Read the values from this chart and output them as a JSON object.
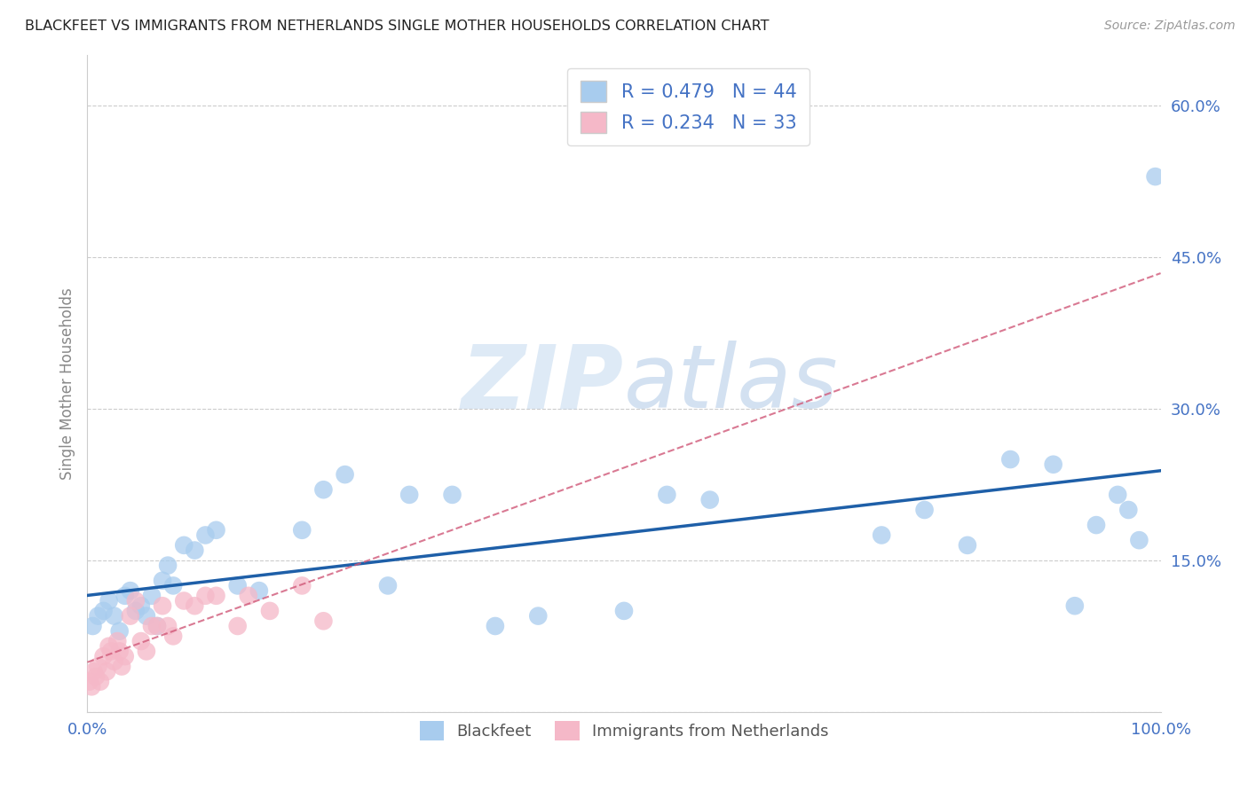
{
  "title": "BLACKFEET VS IMMIGRANTS FROM NETHERLANDS SINGLE MOTHER HOUSEHOLDS CORRELATION CHART",
  "source": "Source: ZipAtlas.com",
  "ylabel": "Single Mother Households",
  "xlim": [
    0,
    1.0
  ],
  "ylim": [
    0,
    0.65
  ],
  "yticks": [
    0.0,
    0.15,
    0.3,
    0.45,
    0.6
  ],
  "ytick_labels": [
    "",
    "15.0%",
    "30.0%",
    "45.0%",
    "60.0%"
  ],
  "xticks": [
    0.0,
    0.2,
    0.4,
    0.6,
    0.8,
    1.0
  ],
  "xtick_labels": [
    "0.0%",
    "",
    "",
    "",
    "",
    "100.0%"
  ],
  "blackfeet_x": [
    0.005,
    0.01,
    0.015,
    0.02,
    0.025,
    0.03,
    0.035,
    0.04,
    0.045,
    0.05,
    0.055,
    0.06,
    0.065,
    0.07,
    0.075,
    0.08,
    0.09,
    0.1,
    0.11,
    0.12,
    0.14,
    0.16,
    0.2,
    0.22,
    0.24,
    0.28,
    0.3,
    0.34,
    0.38,
    0.42,
    0.5,
    0.54,
    0.58,
    0.74,
    0.78,
    0.82,
    0.86,
    0.9,
    0.92,
    0.94,
    0.96,
    0.97,
    0.98,
    0.995
  ],
  "blackfeet_y": [
    0.085,
    0.095,
    0.1,
    0.11,
    0.095,
    0.08,
    0.115,
    0.12,
    0.1,
    0.105,
    0.095,
    0.115,
    0.085,
    0.13,
    0.145,
    0.125,
    0.165,
    0.16,
    0.175,
    0.18,
    0.125,
    0.12,
    0.18,
    0.22,
    0.235,
    0.125,
    0.215,
    0.215,
    0.085,
    0.095,
    0.1,
    0.215,
    0.21,
    0.175,
    0.2,
    0.165,
    0.25,
    0.245,
    0.105,
    0.185,
    0.215,
    0.2,
    0.17,
    0.53
  ],
  "netherlands_x": [
    0.002,
    0.004,
    0.006,
    0.008,
    0.01,
    0.012,
    0.015,
    0.018,
    0.02,
    0.022,
    0.025,
    0.028,
    0.03,
    0.032,
    0.035,
    0.04,
    0.045,
    0.05,
    0.055,
    0.06,
    0.065,
    0.07,
    0.075,
    0.08,
    0.09,
    0.1,
    0.11,
    0.12,
    0.14,
    0.15,
    0.17,
    0.2,
    0.22
  ],
  "netherlands_y": [
    0.03,
    0.025,
    0.04,
    0.035,
    0.045,
    0.03,
    0.055,
    0.04,
    0.065,
    0.06,
    0.05,
    0.07,
    0.06,
    0.045,
    0.055,
    0.095,
    0.11,
    0.07,
    0.06,
    0.085,
    0.085,
    0.105,
    0.085,
    0.075,
    0.11,
    0.105,
    0.115,
    0.115,
    0.085,
    0.115,
    0.1,
    0.125,
    0.09
  ],
  "R_blackfeet": 0.479,
  "N_blackfeet": 44,
  "R_netherlands": 0.234,
  "N_netherlands": 33,
  "blackfeet_color": "#A8CCEE",
  "netherlands_color": "#F5B8C8",
  "blackfeet_line_color": "#1E5FA8",
  "netherlands_line_color": "#D05878",
  "title_color": "#222222",
  "tick_color": "#4472C4",
  "grid_color": "#CCCCCC",
  "background_color": "#FFFFFF",
  "watermark": "ZIPatlas"
}
